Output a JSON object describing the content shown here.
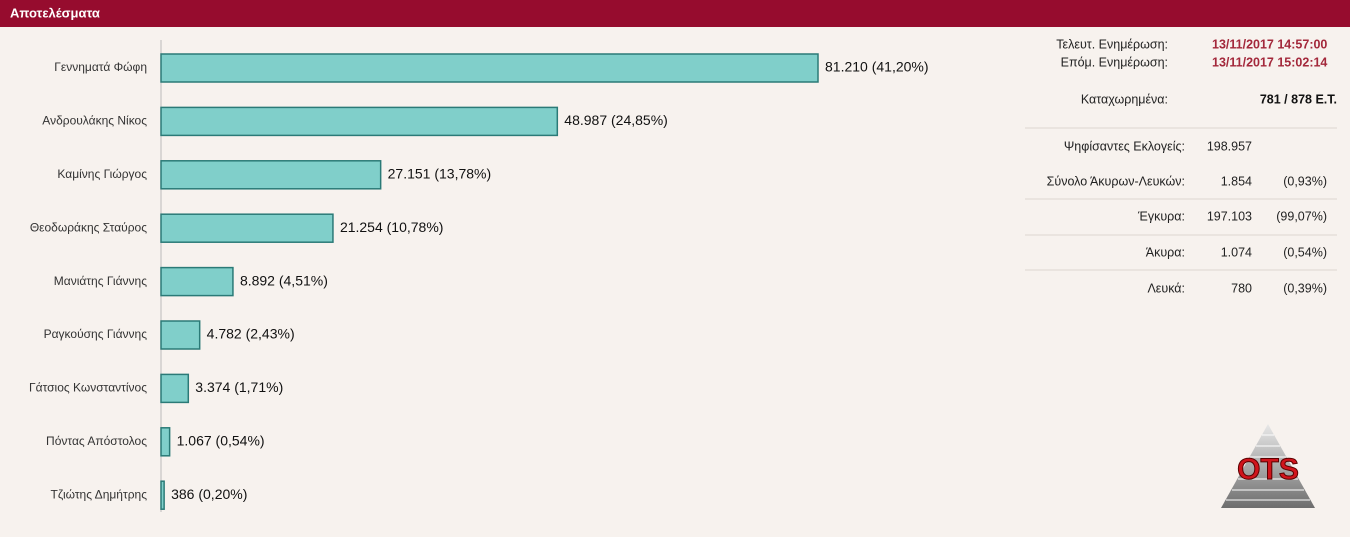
{
  "header": {
    "title": "Αποτελέσματα"
  },
  "chart_data": {
    "type": "bar",
    "orientation": "horizontal",
    "categories": [
      "Γεννηματά Φώφη",
      "Ανδρουλάκης Νίκος",
      "Καμίνης Γιώργος",
      "Θεοδωράκης Σταύρος",
      "Μανιάτης Γιάννης",
      "Ραγκούσης Γιάννης",
      "Γάτσιος Κωνσταντίνος",
      "Πόντας Απόστολος",
      "Τζιώτης Δημήτρης"
    ],
    "values": [
      81210,
      48987,
      27151,
      21254,
      8892,
      4782,
      3374,
      1067,
      386
    ],
    "value_labels": [
      "81.210 (41,20%)",
      "48.987 (24,85%)",
      "27.151 (13,78%)",
      "21.254 (10,78%)",
      "8.892 (4,51%)",
      "4.782 (2,43%)",
      "3.374 (1,71%)",
      "1.067 (0,54%)",
      "386 (0,20%)"
    ],
    "color": "#80cfca",
    "edge_color": "#2b7a77"
  },
  "info": {
    "last_update_label": "Τελευτ. Ενημέρωση:",
    "last_update": "13/11/2017 14:57:00",
    "next_update_label": "Επόμ. Ενημέρωση:",
    "next_update": "13/11/2017 15:02:14",
    "registered_label": "Καταχωρημένα:",
    "registered": "781 / 878 Ε.Τ.",
    "rows": [
      [
        "Ψηφίσαντες Εκλογείς:",
        "198.957"
      ],
      [
        "Σύνολο Άκυρων-Λευκών:",
        "1.854",
        "(0,93%)"
      ],
      [
        "Έγκυρα:",
        "197.103",
        "(99,07%)"
      ],
      [
        "Άκυρα:",
        "1.074",
        "(0,54%)"
      ],
      [
        "Λευκά:",
        "780",
        "(0,39%)"
      ]
    ]
  },
  "logo": {
    "text": "OTS"
  }
}
